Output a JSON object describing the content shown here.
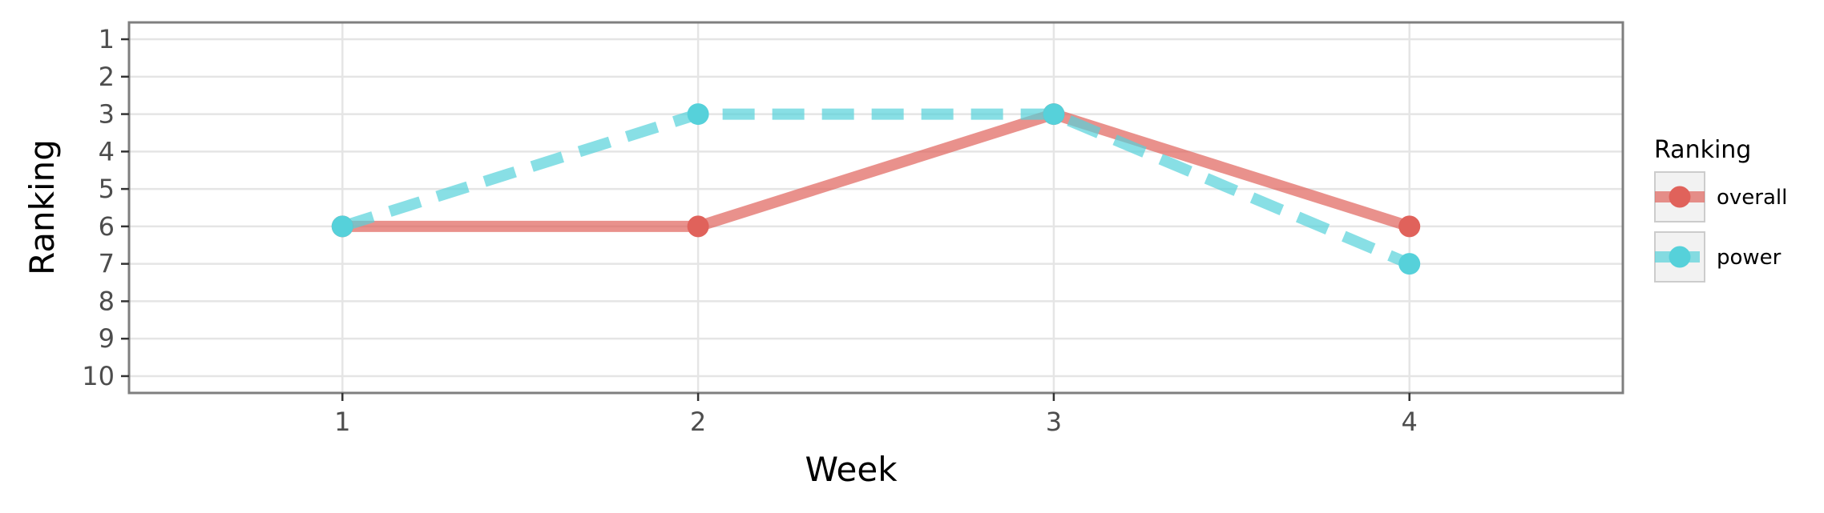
{
  "chart_data": {
    "type": "line",
    "title": "",
    "xlabel": "Week",
    "ylabel": "Ranking",
    "x": [
      1,
      2,
      3,
      4
    ],
    "x_tick_labels": [
      "1",
      "2",
      "3",
      "4"
    ],
    "y_tick_labels": [
      "1",
      "2",
      "3",
      "4",
      "5",
      "6",
      "7",
      "8",
      "9",
      "10"
    ],
    "xlim": [
      0.4,
      4.6
    ],
    "ylim": [
      10.45,
      0.55
    ],
    "y_reversed": true,
    "grid": true,
    "legend": {
      "title": "Ranking",
      "placement": "right"
    },
    "series": [
      {
        "name": "overall",
        "values": [
          6,
          6,
          3,
          6
        ],
        "color": "#e0625b",
        "line_style": "solid"
      },
      {
        "name": "power",
        "values": [
          6,
          3,
          3,
          7
        ],
        "color": "#56d1da",
        "line_style": "dashed"
      }
    ]
  }
}
